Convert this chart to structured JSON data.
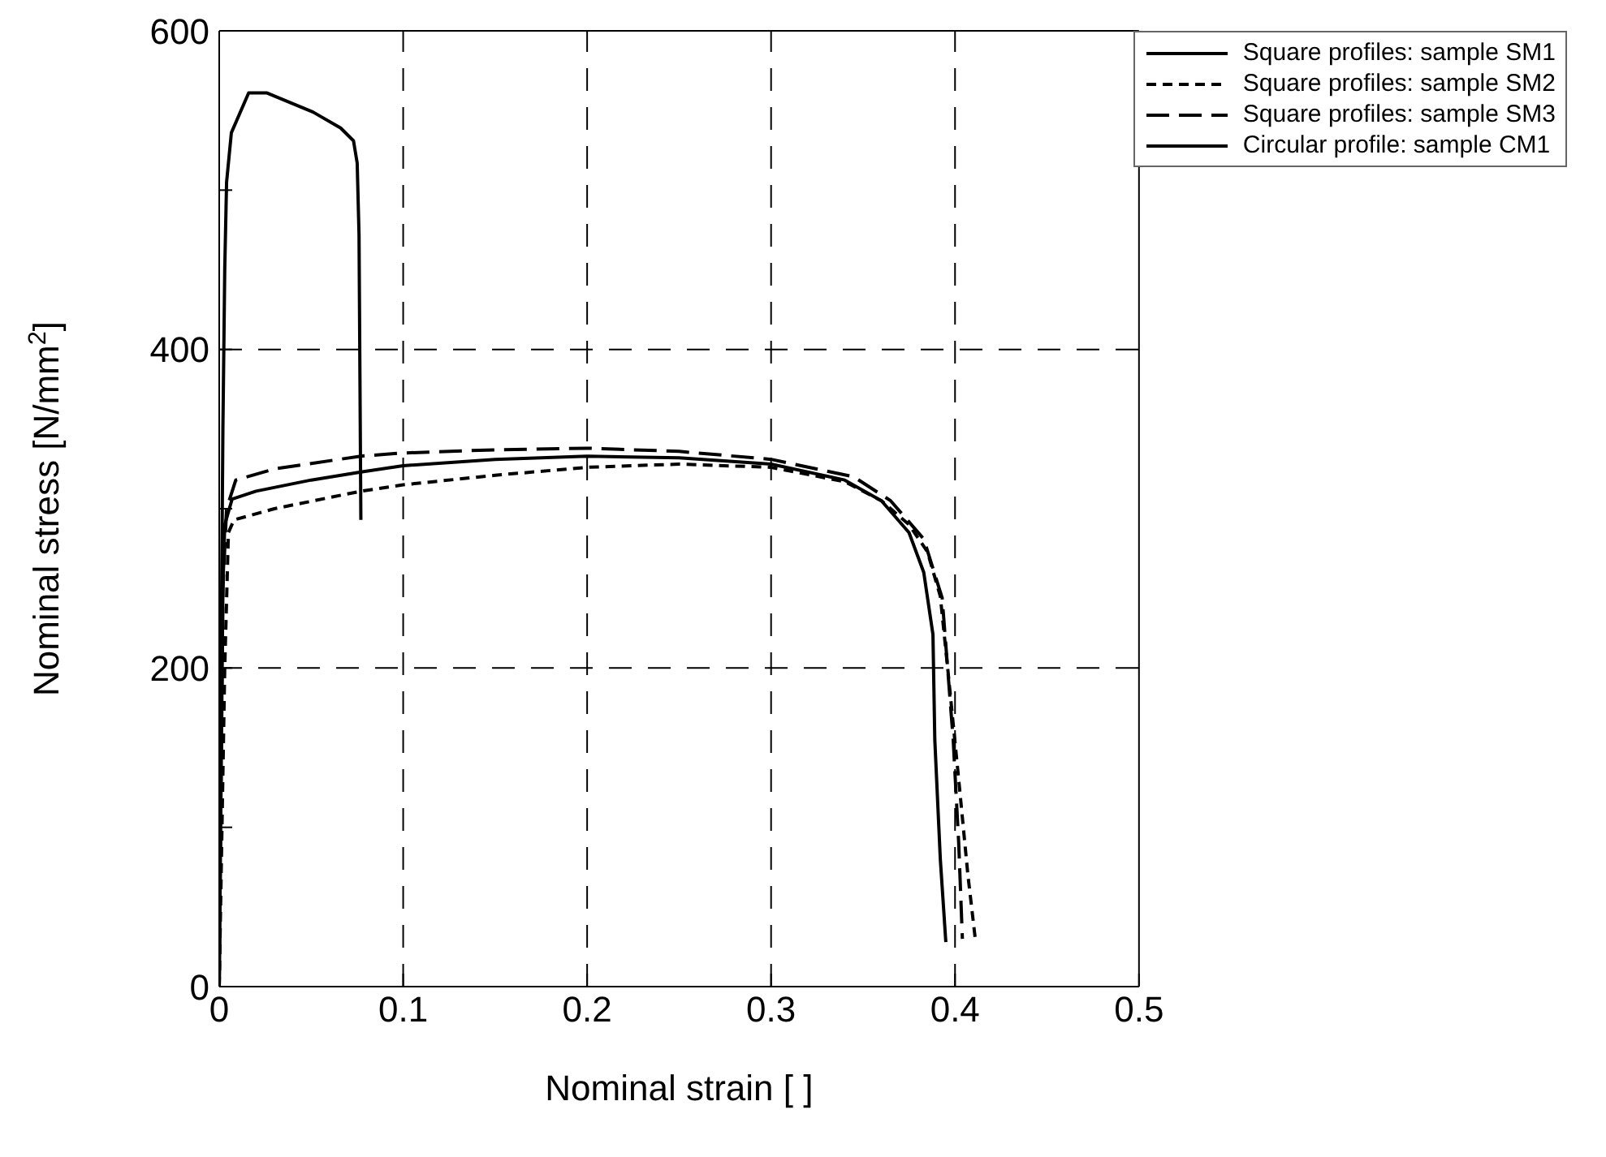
{
  "chart_data": {
    "type": "line",
    "xlabel": "Nominal strain [ ]",
    "ylabel": "Nominal stress [N/mm$^{2}$]",
    "xlim": [
      0,
      0.5
    ],
    "xticks": [
      0,
      0.1,
      0.2,
      0.3,
      0.4,
      0.5
    ],
    "ylim": [
      0,
      600
    ],
    "yticks": [
      0,
      {
        "value": 100,
        "label": null
      },
      200,
      {
        "value": 300,
        "label": null
      },
      400,
      {
        "value": 500,
        "label": null
      },
      600
    ],
    "grid": true,
    "legend": "top right",
    "marker": "none",
    "series": [
      {
        "name": "Square profiles: sample SM1",
        "color": "#000000",
        "line_style": "solid",
        "x": [
          0,
          0.002,
          0.003,
          0.007,
          0.02,
          0.05,
          0.077,
          0.1,
          0.15,
          0.2,
          0.25,
          0.3,
          0.34,
          0.36,
          0.375,
          0.383,
          0.388,
          0.389,
          0.392,
          0.395
        ],
        "values": [
          0,
          250,
          290,
          306,
          311,
          318,
          323,
          327,
          331,
          333,
          332,
          328,
          318,
          305,
          285,
          260,
          221,
          155,
          80,
          28
        ]
      },
      {
        "name": "Square profiles: sample SM2",
        "color": "#000000",
        "line_style": "dashed",
        "x": [
          0,
          0.003,
          0.005,
          0.008,
          0.03,
          0.077,
          0.1,
          0.15,
          0.2,
          0.25,
          0.3,
          0.34,
          0.36,
          0.375,
          0.385,
          0.392,
          0.396,
          0.402,
          0.407,
          0.411
        ],
        "values": [
          0,
          200,
          285,
          293,
          300,
          311,
          315,
          321,
          326,
          328,
          326,
          317,
          305,
          290,
          273,
          245,
          200,
          130,
          70,
          30
        ]
      },
      {
        "name": "Square profiles: sample SM3",
        "color": "#000000",
        "line_style": "longdash",
        "x": [
          0,
          0.002,
          0.004,
          0.009,
          0.03,
          0.077,
          0.1,
          0.15,
          0.2,
          0.25,
          0.3,
          0.345,
          0.365,
          0.383,
          0.393,
          0.399,
          0.402,
          0.404
        ],
        "values": [
          0,
          250,
          300,
          318,
          325,
          333,
          335,
          337,
          338,
          336,
          331,
          320,
          305,
          281,
          244,
          155,
          90,
          30
        ]
      },
      {
        "name": "Circular profile: sample CM1",
        "color": "#000000",
        "line_style": "solid",
        "x": [
          0,
          0.001,
          0.002,
          0.003,
          0.004,
          0.0066,
          0.016,
          0.026,
          0.051,
          0.066,
          0.073,
          0.075,
          0.076,
          0.077
        ],
        "values": [
          0,
          200,
          350,
          450,
          505,
          536,
          561,
          561,
          549,
          539,
          531,
          517,
          472,
          293
        ]
      }
    ]
  }
}
